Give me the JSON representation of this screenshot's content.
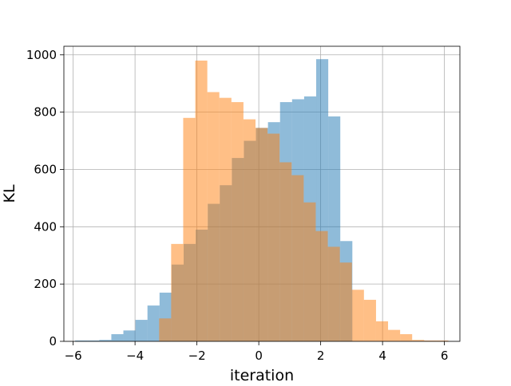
{
  "chart_data": {
    "type": "bar",
    "title": "",
    "xlabel": "iteration",
    "ylabel": "KL",
    "xlim": [
      -6.3,
      6.5
    ],
    "ylim": [
      0,
      1030
    ],
    "x_ticks": [
      -6,
      -4,
      -2,
      0,
      2,
      4,
      6
    ],
    "y_ticks": [
      0,
      200,
      400,
      600,
      800,
      1000
    ],
    "grid": true,
    "bin_width": 0.3895,
    "series": [
      {
        "color": "#1f77b4",
        "opacity": 0.5,
        "bin_edges": [
          -5.935,
          -5.545,
          -5.156,
          -4.766,
          -4.377,
          -3.987,
          -3.598,
          -3.208,
          -2.819,
          -2.429,
          -2.04,
          -1.65,
          -1.261,
          -0.871,
          -0.482,
          -0.092,
          0.297,
          0.687,
          1.076,
          1.466,
          1.855,
          2.245,
          2.634,
          3.024
        ],
        "values": [
          3,
          3,
          5,
          25,
          38,
          75,
          125,
          170,
          268,
          340,
          390,
          480,
          545,
          640,
          700,
          745,
          765,
          835,
          845,
          855,
          985,
          785,
          350
        ]
      },
      {
        "color": "#ff7f0e",
        "opacity": 0.5,
        "bin_edges": [
          -3.222,
          -2.833,
          -2.443,
          -2.054,
          -1.664,
          -1.275,
          -0.885,
          -0.496,
          -0.106,
          0.283,
          0.673,
          1.062,
          1.452,
          1.841,
          2.231,
          2.62,
          3.01,
          3.399,
          3.789,
          4.178,
          4.568,
          4.957,
          5.347,
          5.736,
          6.126
        ],
        "values": [
          80,
          340,
          780,
          980,
          870,
          850,
          835,
          775,
          745,
          725,
          625,
          580,
          485,
          385,
          330,
          275,
          180,
          145,
          70,
          40,
          25,
          5,
          3,
          3
        ]
      }
    ]
  }
}
